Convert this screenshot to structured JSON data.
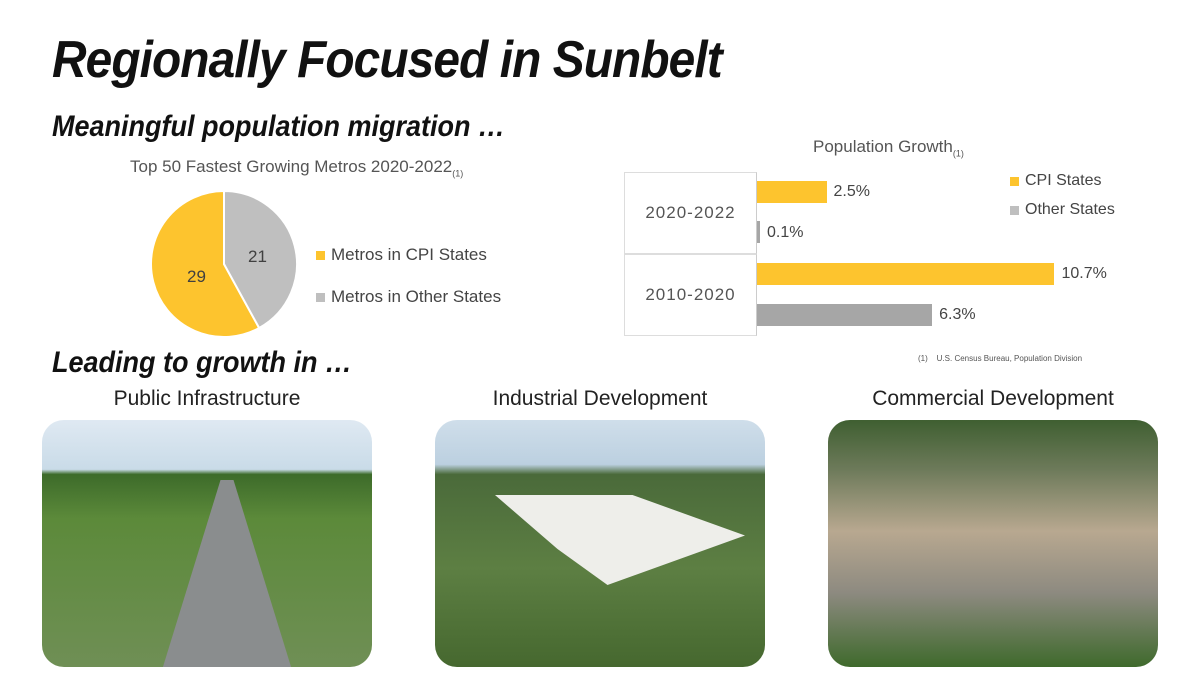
{
  "title": "Regionally Focused in Sunbelt",
  "section1": "Meaningful population migration …",
  "section2": "Leading to growth in …",
  "footnote": {
    "num": "(1)",
    "text": "U.S. Census Bureau, Population Division"
  },
  "colors": {
    "cpi": "#FDC42E",
    "other_pie": "#BFBFBF",
    "other_bar": "#A6A6A6"
  },
  "chart_data": [
    {
      "type": "pie",
      "title": "Top 50 Fastest Growing Metros 2020-2022",
      "title_note": "(1)",
      "slices": [
        {
          "label": "Metros in CPI States",
          "value": 29,
          "value_label": "29"
        },
        {
          "label": "Metros in Other States",
          "value": 21,
          "value_label": "21"
        }
      ],
      "legend": "right"
    },
    {
      "type": "bar",
      "orientation": "horizontal",
      "title": "Population Growth",
      "title_note": "(1)",
      "categories": [
        "2020-2022",
        "2010-2020"
      ],
      "series": [
        {
          "name": "CPI States",
          "values": [
            2.5,
            10.7
          ],
          "labels": [
            "2.5%",
            "10.7%"
          ]
        },
        {
          "name": "Other States",
          "values": [
            0.1,
            6.3
          ],
          "labels": [
            "0.1%",
            "6.3%"
          ]
        }
      ],
      "unit": "%",
      "legend": "top-right"
    }
  ],
  "photos": [
    {
      "label": "Public Infrastructure"
    },
    {
      "label": "Industrial Development"
    },
    {
      "label": "Commercial Development"
    }
  ]
}
